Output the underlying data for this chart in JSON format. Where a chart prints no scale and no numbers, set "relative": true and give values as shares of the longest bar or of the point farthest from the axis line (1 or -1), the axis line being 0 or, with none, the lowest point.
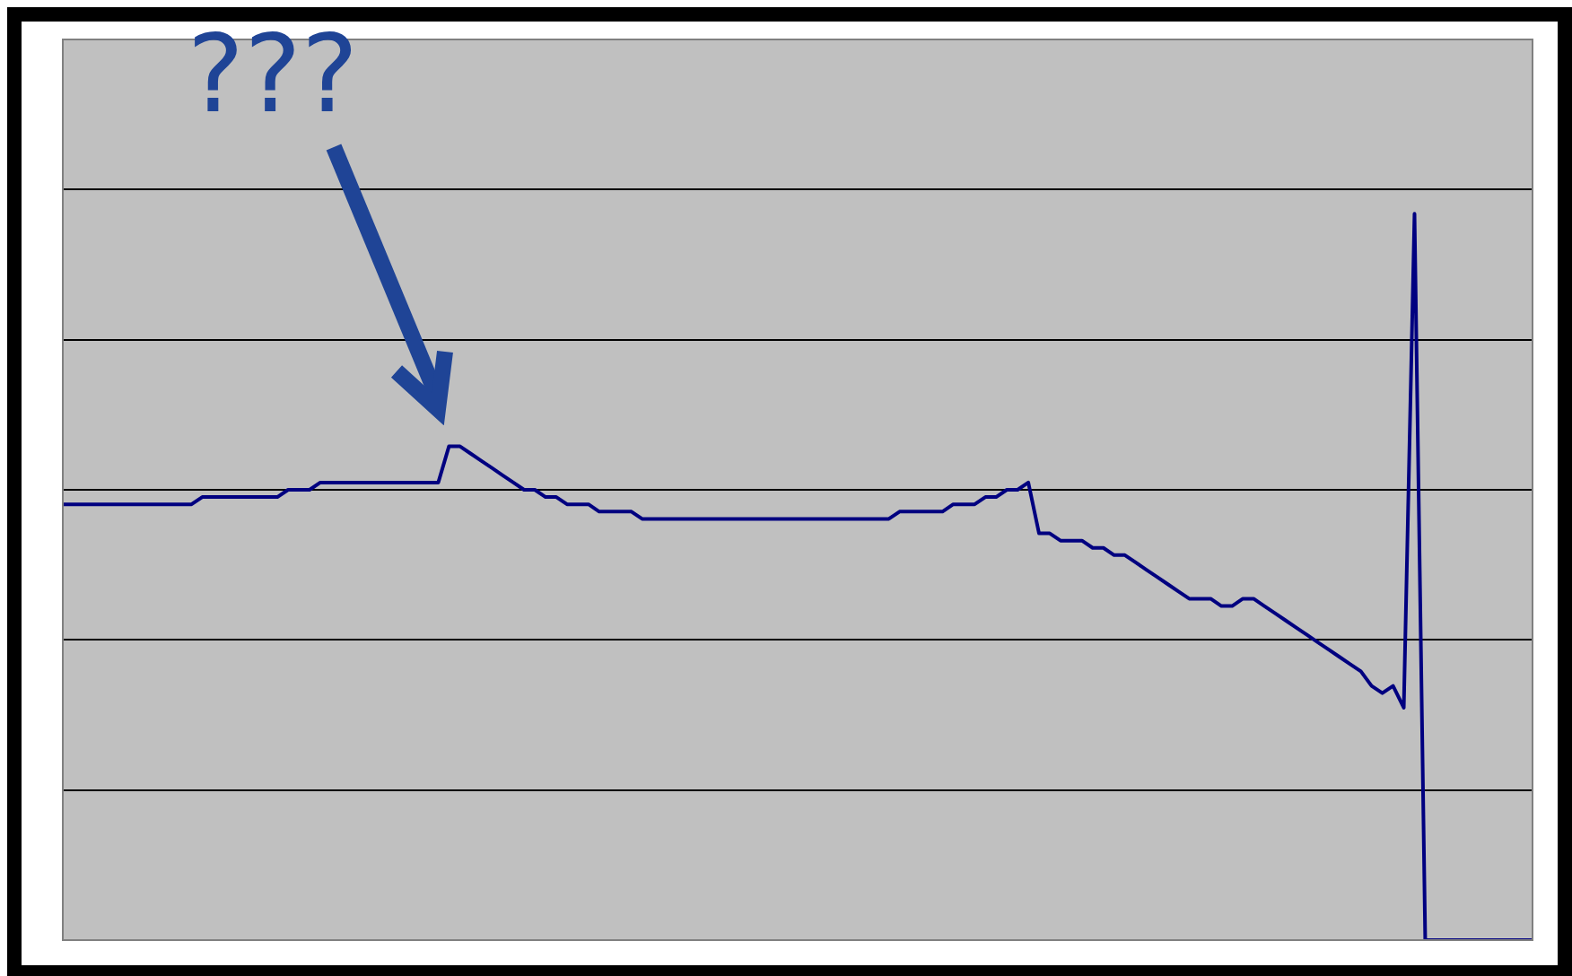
{
  "chart_data": {
    "type": "line",
    "relative": true,
    "grid": "y",
    "legend": false,
    "marker": "none",
    "line_style": "solid",
    "annotations": [
      "???"
    ],
    "categories": [
      null,
      null,
      null,
      null,
      null,
      null,
      null,
      null,
      null,
      null,
      null,
      null,
      null,
      null,
      null,
      null,
      null,
      null,
      null,
      null,
      null,
      null,
      null,
      null,
      null,
      null,
      null,
      null,
      null,
      null,
      null,
      null,
      null,
      null,
      null,
      null,
      null,
      null,
      null,
      null,
      null,
      null,
      null,
      null,
      null,
      null,
      null,
      null,
      null,
      null,
      null,
      null,
      null,
      null,
      null,
      null,
      null,
      null,
      null,
      null,
      null,
      null,
      null,
      null,
      null,
      null,
      null,
      null,
      null,
      null,
      null,
      null,
      null,
      null,
      null,
      null,
      null,
      null,
      null,
      null,
      null,
      null,
      null,
      null,
      null,
      null,
      null,
      null,
      null,
      null,
      null,
      null,
      null,
      null,
      null,
      null,
      null,
      null,
      null,
      null,
      null,
      null,
      null,
      null,
      null,
      null,
      null,
      null,
      null,
      null,
      null,
      null,
      null,
      null,
      null,
      null,
      null,
      null,
      null,
      null,
      null,
      null,
      null,
      null,
      null,
      null,
      null,
      null,
      null,
      null,
      null,
      null,
      null,
      null,
      null,
      null,
      null,
      null
    ],
    "series": [
      {
        "color": "#000080",
        "values": [
          0.6,
          0.6,
          0.6,
          0.6,
          0.6,
          0.6,
          0.6,
          0.6,
          0.6,
          0.6,
          0.6,
          0.6,
          0.6,
          0.61,
          0.61,
          0.61,
          0.61,
          0.61,
          0.61,
          0.61,
          0.61,
          0.62,
          0.62,
          0.62,
          0.63,
          0.63,
          0.63,
          0.63,
          0.63,
          0.63,
          0.63,
          0.63,
          0.63,
          0.63,
          0.63,
          0.63,
          0.68,
          0.68,
          0.67,
          0.66,
          0.65,
          0.64,
          0.63,
          0.62,
          0.62,
          0.61,
          0.61,
          0.6,
          0.6,
          0.6,
          0.59,
          0.59,
          0.59,
          0.59,
          0.58,
          0.58,
          0.58,
          0.58,
          0.58,
          0.58,
          0.58,
          0.58,
          0.58,
          0.58,
          0.58,
          0.58,
          0.58,
          0.58,
          0.58,
          0.58,
          0.58,
          0.58,
          0.58,
          0.58,
          0.58,
          0.58,
          0.58,
          0.58,
          0.59,
          0.59,
          0.59,
          0.59,
          0.59,
          0.6,
          0.6,
          0.6,
          0.61,
          0.61,
          0.62,
          0.62,
          0.63,
          0.56,
          0.56,
          0.55,
          0.55,
          0.55,
          0.54,
          0.54,
          0.53,
          0.53,
          0.52,
          0.51,
          0.5,
          0.49,
          0.48,
          0.47,
          0.47,
          0.47,
          0.46,
          0.46,
          0.47,
          0.47,
          0.46,
          0.45,
          0.44,
          0.43,
          0.42,
          0.41,
          0.4,
          0.39,
          0.38,
          0.37,
          0.35,
          0.34,
          0.35,
          0.32,
          1.0,
          0,
          0,
          0,
          0,
          0,
          0,
          0,
          0,
          0,
          0,
          0
        ]
      }
    ]
  }
}
